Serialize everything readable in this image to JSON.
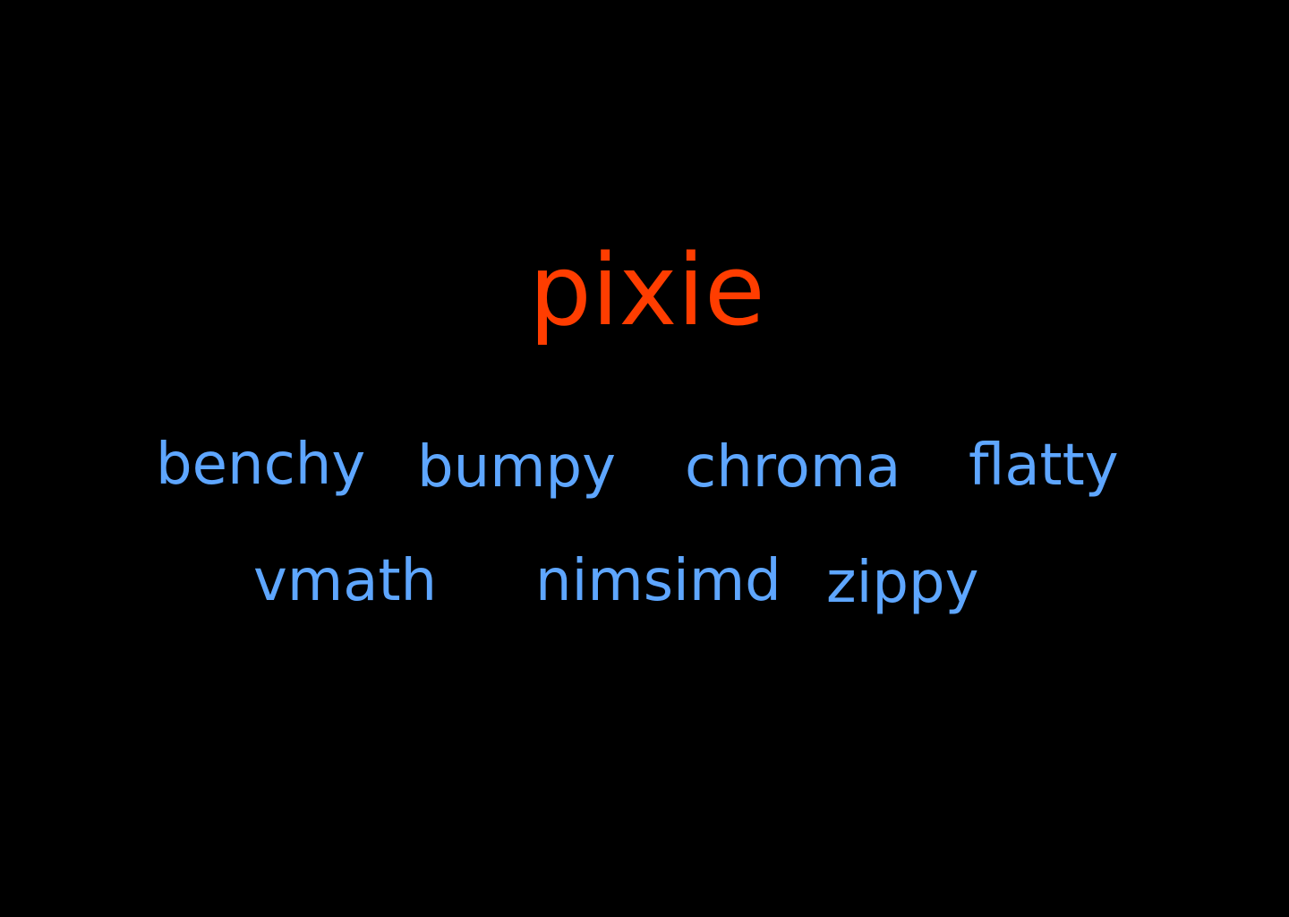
{
  "colors": {
    "background": "#000000",
    "title": "#ff3d00",
    "dependency": "#5ea6ff"
  },
  "title": "pixie",
  "dependencies": [
    "benchy",
    "bumpy",
    "chroma",
    "flatty",
    "vmath",
    "nimsimd",
    "zippy"
  ]
}
